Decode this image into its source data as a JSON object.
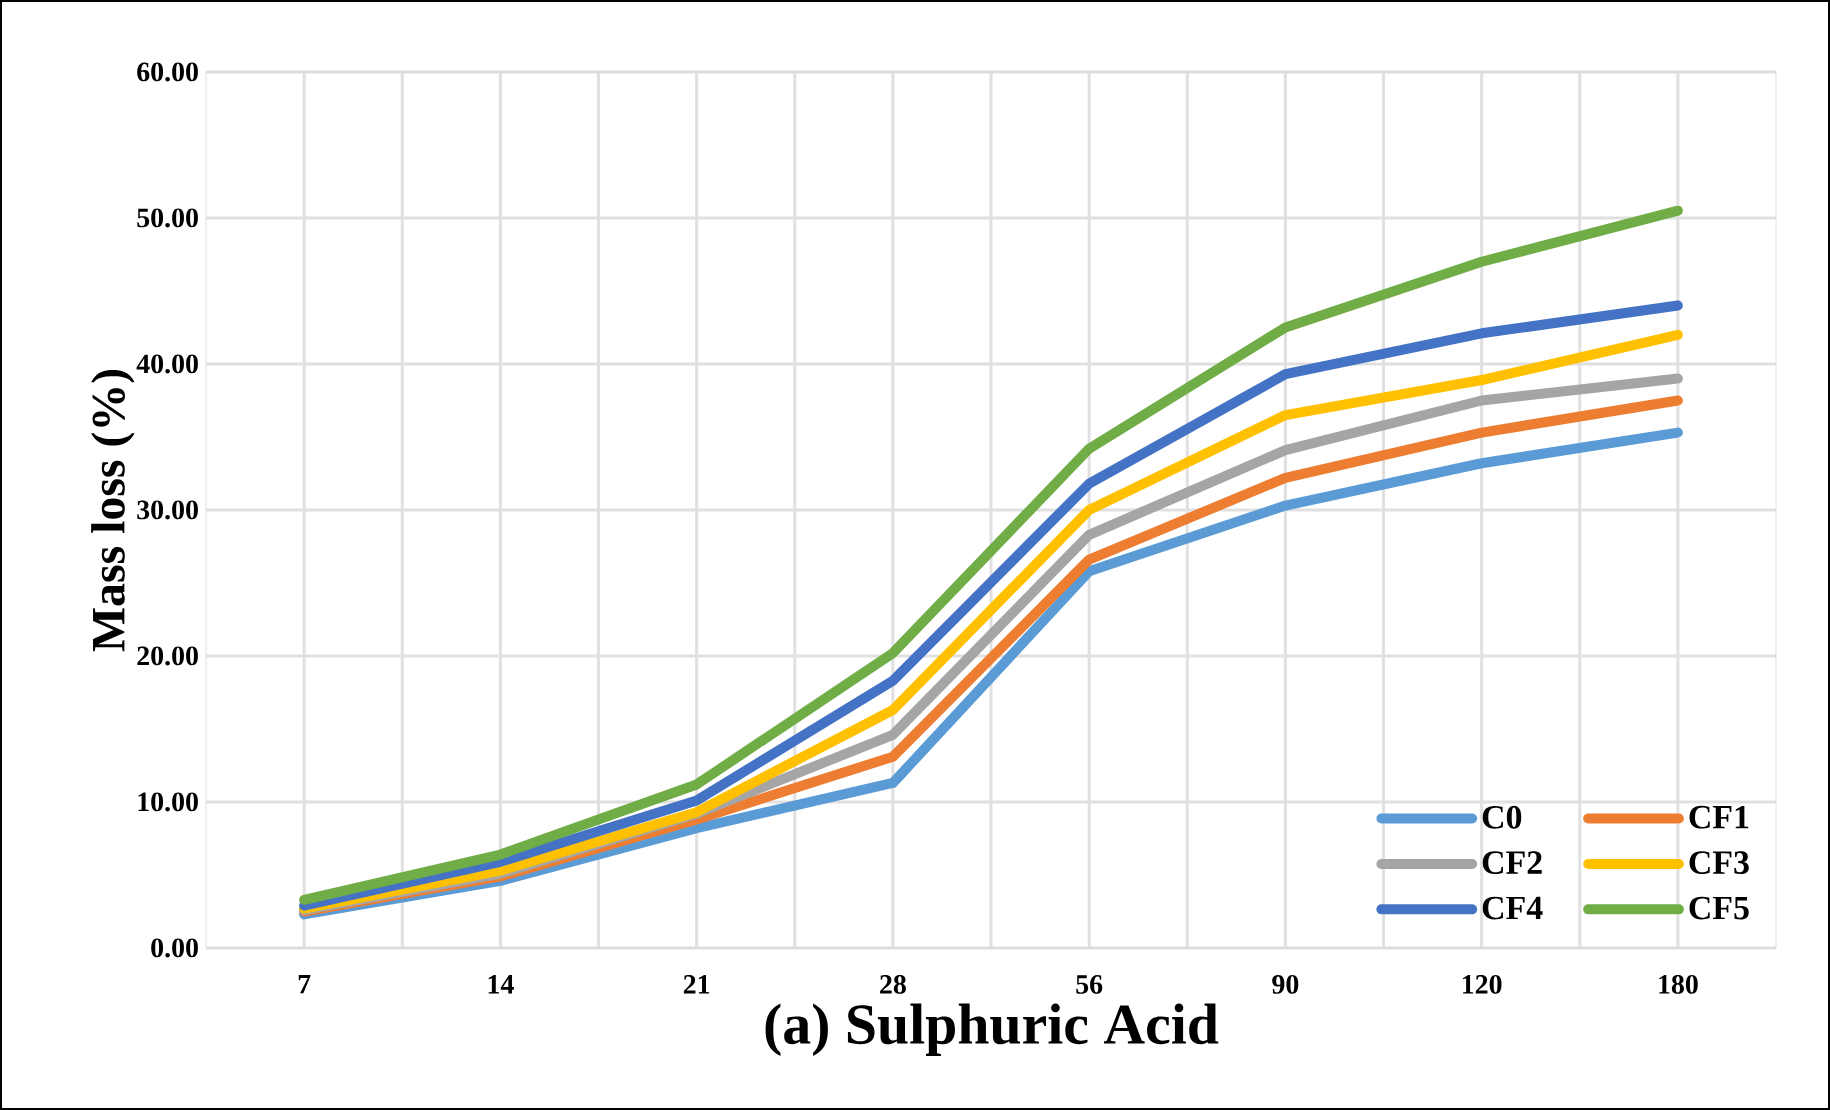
{
  "chart_data": {
    "type": "line",
    "title": "(a) Sulphuric Acid",
    "ylabel": "Mass loss (%)",
    "categories": [
      "7",
      "14",
      "21",
      "28",
      "56",
      "90",
      "120",
      "180"
    ],
    "series": [
      {
        "name": "C0",
        "color": "#5b9bd5",
        "values": [
          2.3,
          4.6,
          8.2,
          11.3,
          25.8,
          30.3,
          33.2,
          35.3
        ]
      },
      {
        "name": "CF1",
        "color": "#ed7d31",
        "values": [
          2.5,
          4.9,
          8.8,
          13.1,
          26.6,
          32.2,
          35.3,
          37.5
        ]
      },
      {
        "name": "CF2",
        "color": "#a5a5a5",
        "values": [
          2.6,
          5.1,
          9.2,
          14.6,
          28.3,
          34.1,
          37.5,
          39.0
        ]
      },
      {
        "name": "CF3",
        "color": "#ffc000",
        "values": [
          2.7,
          5.3,
          9.3,
          16.3,
          30.0,
          36.5,
          38.9,
          42.0
        ]
      },
      {
        "name": "CF4",
        "color": "#4472c4",
        "values": [
          2.9,
          5.9,
          10.1,
          18.3,
          31.8,
          39.3,
          42.1,
          44.0
        ]
      },
      {
        "name": "CF5",
        "color": "#70ad47",
        "values": [
          3.3,
          6.4,
          11.2,
          20.2,
          34.2,
          42.5,
          47.0,
          50.5
        ]
      }
    ],
    "ylim": [
      0,
      60
    ],
    "yticks": [
      {
        "value": 0,
        "label": "0.00"
      },
      {
        "value": 10,
        "label": "10.00"
      },
      {
        "value": 20,
        "label": "20.00"
      },
      {
        "value": 30,
        "label": "30.00"
      },
      {
        "value": 40,
        "label": "40.00"
      },
      {
        "value": 50,
        "label": "50.00"
      },
      {
        "value": 60,
        "label": "60.00"
      }
    ],
    "grid": true,
    "legend": "bottom right",
    "marker": "none",
    "line_style": "solid"
  }
}
